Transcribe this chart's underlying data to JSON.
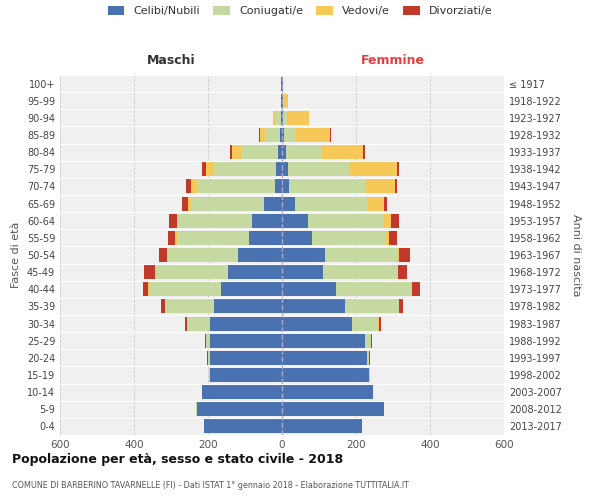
{
  "age_groups": [
    "0-4",
    "5-9",
    "10-14",
    "15-19",
    "20-24",
    "25-29",
    "30-34",
    "35-39",
    "40-44",
    "45-49",
    "50-54",
    "55-59",
    "60-64",
    "65-69",
    "70-74",
    "75-79",
    "80-84",
    "85-89",
    "90-94",
    "95-99",
    "100+"
  ],
  "birth_years": [
    "2013-2017",
    "2008-2012",
    "2003-2007",
    "1998-2002",
    "1993-1997",
    "1988-1992",
    "1983-1987",
    "1978-1982",
    "1973-1977",
    "1968-1972",
    "1963-1967",
    "1958-1962",
    "1953-1957",
    "1948-1952",
    "1943-1947",
    "1938-1942",
    "1933-1937",
    "1928-1932",
    "1923-1927",
    "1918-1922",
    "≤ 1917"
  ],
  "maschi_celibi": [
    210,
    230,
    215,
    195,
    195,
    195,
    195,
    185,
    165,
    145,
    120,
    90,
    80,
    50,
    20,
    15,
    10,
    5,
    3,
    2,
    2
  ],
  "maschi_coniugati": [
    2,
    2,
    2,
    3,
    5,
    10,
    60,
    130,
    195,
    195,
    190,
    195,
    200,
    195,
    210,
    170,
    100,
    40,
    15,
    2,
    0
  ],
  "maschi_vedovi": [
    0,
    0,
    0,
    0,
    0,
    1,
    2,
    2,
    2,
    2,
    2,
    3,
    5,
    10,
    15,
    20,
    25,
    15,
    5,
    0,
    0
  ],
  "maschi_divorziati": [
    0,
    0,
    0,
    0,
    2,
    2,
    5,
    10,
    15,
    30,
    20,
    20,
    20,
    15,
    15,
    10,
    5,
    3,
    0,
    0,
    0
  ],
  "femmine_celibi": [
    215,
    275,
    245,
    235,
    230,
    225,
    190,
    170,
    145,
    110,
    115,
    80,
    70,
    35,
    20,
    15,
    10,
    5,
    3,
    3,
    2
  ],
  "femmine_coniugati": [
    2,
    2,
    2,
    3,
    5,
    15,
    70,
    145,
    205,
    200,
    195,
    200,
    205,
    195,
    205,
    165,
    95,
    30,
    10,
    2,
    0
  ],
  "femmine_vedovi": [
    0,
    0,
    0,
    0,
    1,
    1,
    2,
    2,
    2,
    3,
    5,
    10,
    20,
    45,
    80,
    130,
    115,
    95,
    60,
    10,
    2
  ],
  "femmine_divorziati": [
    0,
    0,
    0,
    0,
    1,
    2,
    5,
    10,
    20,
    25,
    30,
    20,
    20,
    10,
    5,
    5,
    5,
    2,
    0,
    0,
    0
  ],
  "color_celibi": "#4a72b0",
  "color_coniugati": "#c5d9a0",
  "color_vedovi": "#f5c858",
  "color_divorziati": "#c0392b",
  "title1": "Popolazione per età, sesso e stato civile - 2018",
  "title2": "COMUNE DI BARBERINO TAVARNELLE (FI) - Dati ISTAT 1° gennaio 2018 - Elaborazione TUTTITALIA.IT",
  "xlabel_maschi": "Maschi",
  "xlabel_femmine": "Femmine",
  "ylabel": "Fasce di età",
  "ylabel_right": "Anni di nascita",
  "legend_celibi": "Celibi/Nubili",
  "legend_coniugati": "Coniugati/e",
  "legend_vedovi": "Vedovi/e",
  "legend_divorziati": "Divorziati/e",
  "xlim": 600,
  "bg_color": "#f0f0f0"
}
